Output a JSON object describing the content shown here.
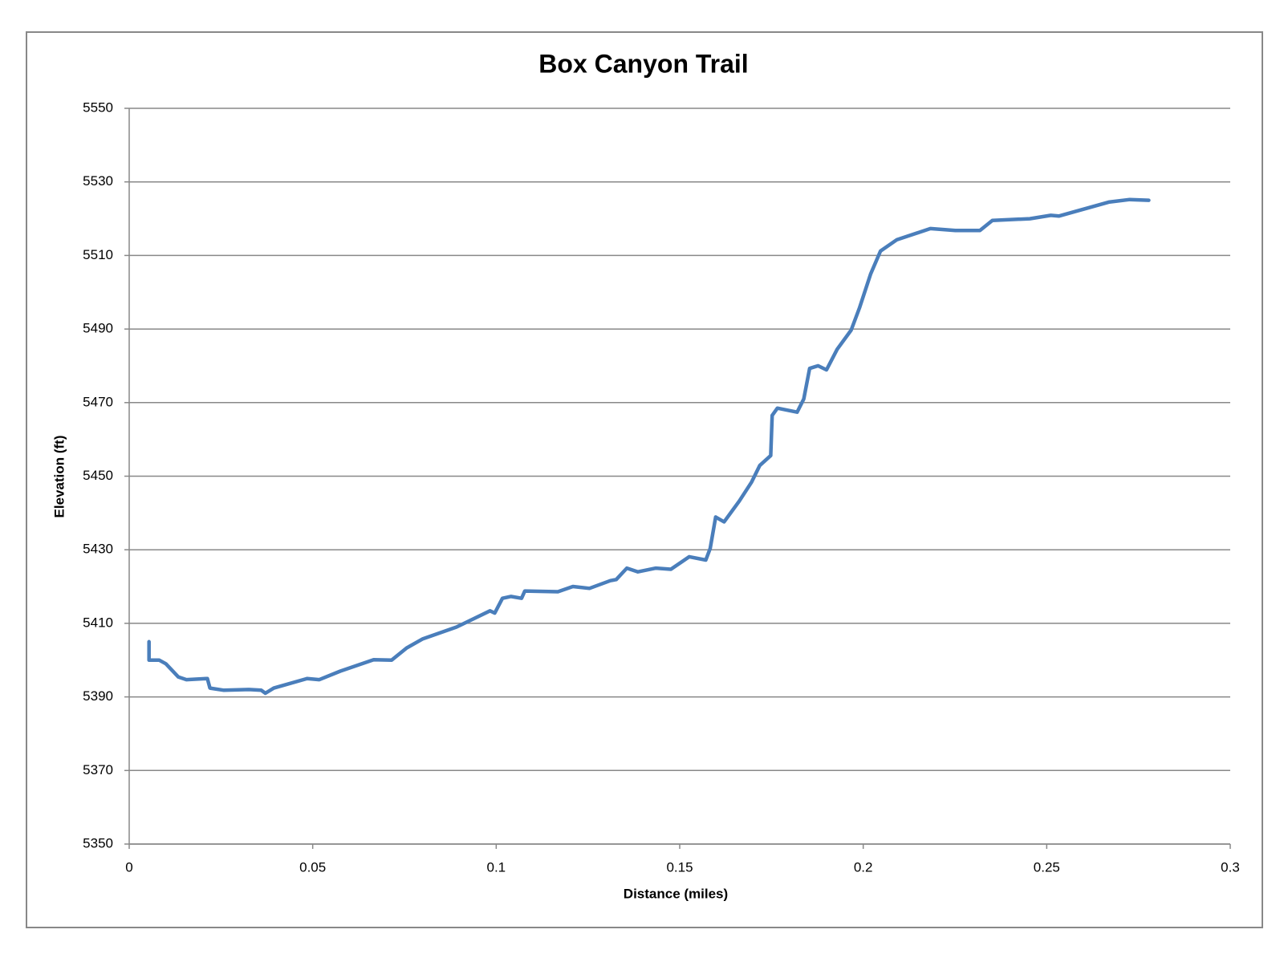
{
  "chart_data": {
    "type": "line",
    "title": "Box Canyon Trail",
    "x_label": "Distance (miles)",
    "y_label": "Elevation (ft)",
    "x": [
      0.0054,
      0.0054,
      0.0082,
      0.01,
      0.0134,
      0.0156,
      0.0213,
      0.022,
      0.0258,
      0.0326,
      0.036,
      0.0371,
      0.0394,
      0.0485,
      0.0518,
      0.0575,
      0.0666,
      0.0715,
      0.0756,
      0.08,
      0.0892,
      0.0983,
      0.0996,
      0.1017,
      0.104,
      0.1069,
      0.1078,
      0.1168,
      0.1209,
      0.1254,
      0.1311,
      0.1327,
      0.1356,
      0.1386,
      0.1435,
      0.1476,
      0.1526,
      0.1571,
      0.1583,
      0.1598,
      0.1621,
      0.1662,
      0.1696,
      0.1718,
      0.1748,
      0.1752,
      0.1766,
      0.182,
      0.1838,
      0.1854,
      0.1877,
      0.19,
      0.1929,
      0.1967,
      0.199,
      0.202,
      0.2047,
      0.2092,
      0.2183,
      0.2251,
      0.2318,
      0.2352,
      0.2454,
      0.2511,
      0.2533,
      0.2669,
      0.2726,
      0.2778
    ],
    "series": [
      {
        "name": "Elevation",
        "color": "#4a7ebb",
        "values": [
          5405,
          5400,
          5400,
          5399,
          5395.4,
          5394.7,
          5395,
          5392.4,
          5391.8,
          5392,
          5391.8,
          5391,
          5392.4,
          5395,
          5394.7,
          5397,
          5400.1,
          5400,
          5403.3,
          5405.8,
          5409,
          5413.4,
          5412.8,
          5416.8,
          5417.3,
          5416.8,
          5418.8,
          5418.6,
          5420,
          5419.5,
          5421.6,
          5421.9,
          5425,
          5424,
          5425,
          5424.7,
          5428.1,
          5427.2,
          5430.4,
          5438.9,
          5437.6,
          5443.2,
          5448.4,
          5452.9,
          5455.6,
          5466.5,
          5468.5,
          5467.4,
          5471,
          5479.3,
          5480,
          5478.9,
          5484.5,
          5489.7,
          5495.8,
          5504.9,
          5511.2,
          5514.3,
          5517.3,
          5516.8,
          5516.8,
          5519.5,
          5520,
          5520.9,
          5520.7,
          5524.5,
          5525.2,
          5525
        ]
      }
    ],
    "xlim": [
      0,
      0.3
    ],
    "xticks": [
      0,
      0.05,
      0.1,
      0.15,
      0.2,
      0.25,
      0.3
    ],
    "ylim": [
      5350,
      5550
    ],
    "yticks": [
      5350,
      5370,
      5390,
      5410,
      5430,
      5450,
      5470,
      5490,
      5510,
      5530,
      5550
    ],
    "grid": true
  }
}
